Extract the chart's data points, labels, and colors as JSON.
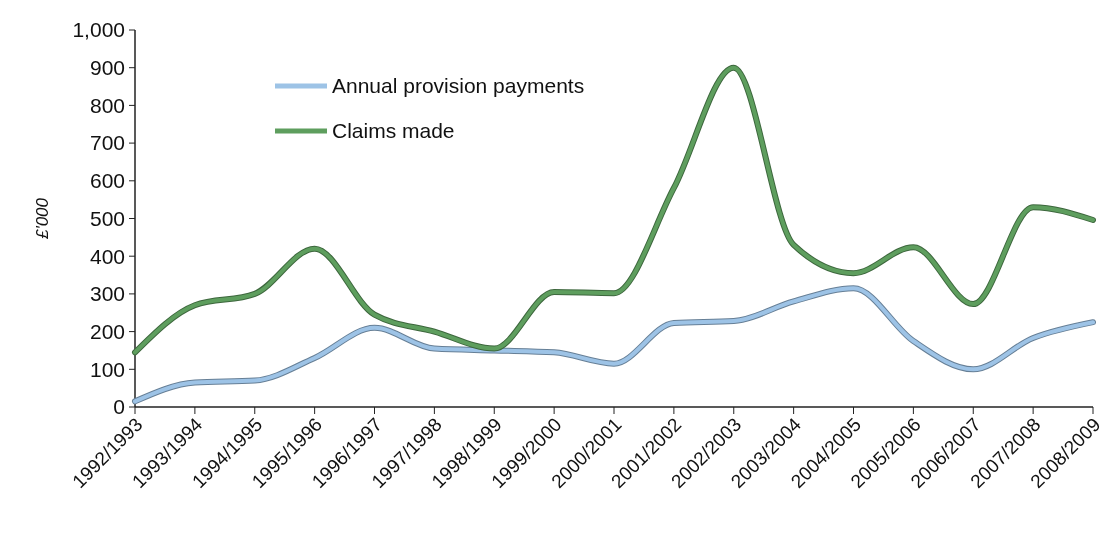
{
  "chart_data": {
    "type": "line",
    "ylabel": "£'000",
    "categories": [
      "1992/1993",
      "1993/1994",
      "1994/1995",
      "1995/1996",
      "1996/1997",
      "1997/1998",
      "1998/1999",
      "1999/2000",
      "2000/2001",
      "2001/2002",
      "2002/2003",
      "2003/2004",
      "2004/2005",
      "2005/2006",
      "2006/2007",
      "2007/2008",
      "2008/2009"
    ],
    "series": [
      {
        "name": "Annual provision payments",
        "color": "#9dc3e6",
        "values": [
          15,
          65,
          70,
          130,
          210,
          155,
          150,
          145,
          115,
          223,
          228,
          280,
          315,
          175,
          100,
          183,
          225
        ]
      },
      {
        "name": "Claims made",
        "color": "#5e9e5e",
        "values": [
          145,
          270,
          300,
          420,
          245,
          200,
          155,
          305,
          302,
          581,
          900,
          430,
          355,
          424,
          273,
          530,
          496
        ]
      }
    ],
    "ylim": [
      0,
      1000
    ],
    "yticks": [
      0,
      {
        "value": 100,
        "label": "100"
      },
      {
        "value": 200,
        "label": "200"
      },
      {
        "value": 300,
        "label": "300"
      },
      {
        "value": 400,
        "label": "400"
      },
      {
        "value": 500,
        "label": "500"
      },
      {
        "value": 600,
        "label": "600"
      },
      {
        "value": 700,
        "label": "700"
      },
      {
        "value": 800,
        "label": "800"
      },
      {
        "value": 900,
        "label": "900"
      },
      {
        "value": 1000,
        "label": "1,000"
      }
    ],
    "grid": false,
    "legend": "top left",
    "marker": "none",
    "line_style": "solid"
  }
}
